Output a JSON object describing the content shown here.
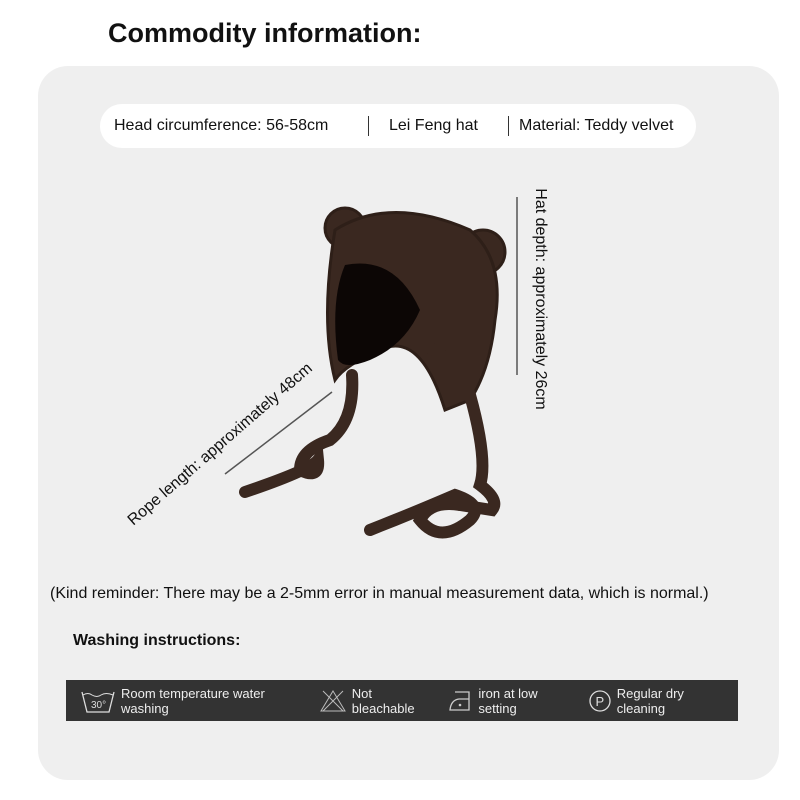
{
  "title": "Commodity information:",
  "specs": {
    "head": "Head circumference: 56-58cm",
    "style": "Lei Feng hat",
    "material": "Material: Teddy velvet"
  },
  "product": {
    "hat_depth": "Hat depth: approximately 26cm",
    "rope_length": "Rope length: approximately 48cm",
    "color": "#3a2820"
  },
  "reminder": "(Kind reminder: There may be a 2-5mm error in manual measurement data, which is normal.)",
  "washing": {
    "title": "Washing instructions:",
    "items": [
      {
        "icon": "wash-30-icon",
        "icon_text": "30°",
        "label": "Room temperature water washing"
      },
      {
        "icon": "no-bleach-icon",
        "label": "Not bleachable"
      },
      {
        "icon": "iron-low-icon",
        "label": "iron at low setting"
      },
      {
        "icon": "dry-clean-p-icon",
        "icon_text": "P",
        "label": "Regular dry cleaning"
      }
    ]
  }
}
